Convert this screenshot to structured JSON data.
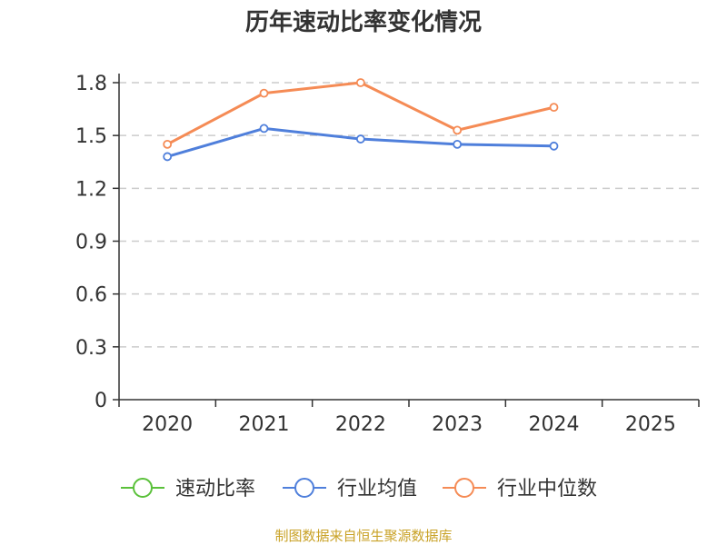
{
  "chart_data": {
    "type": "line",
    "title": "历年速动比率变化情况",
    "categories": [
      "2020",
      "2021",
      "2022",
      "2023",
      "2024",
      "2025"
    ],
    "ylim": [
      0,
      1.8
    ],
    "yticks": [
      "0",
      "0.3",
      "0.6",
      "0.9",
      "1.2",
      "1.5",
      "1.8"
    ],
    "grid": true,
    "legend_position": "bottom",
    "series": [
      {
        "name": "速动比率",
        "color": "#5ac13a",
        "values": [
          null,
          null,
          null,
          null,
          null,
          null
        ]
      },
      {
        "name": "行业均值",
        "color": "#4f7fdb",
        "values": [
          1.38,
          1.54,
          1.48,
          1.45,
          1.44,
          null
        ]
      },
      {
        "name": "行业中位数",
        "color": "#f58b55",
        "values": [
          1.45,
          1.74,
          1.8,
          1.53,
          1.66,
          null
        ]
      }
    ]
  },
  "footer": {
    "source": "制图数据来自恒生聚源数据库"
  }
}
